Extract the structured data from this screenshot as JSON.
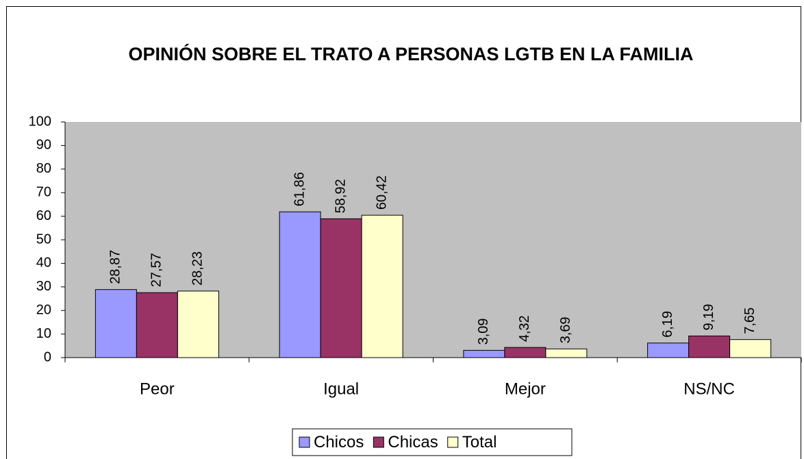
{
  "chart_data": {
    "type": "bar",
    "title": "OPINIÓN SOBRE EL TRATO A PERSONAS LGTB EN LA FAMILIA",
    "categories": [
      "Peor",
      "Igual",
      "Mejor",
      "NS/NC"
    ],
    "series": [
      {
        "name": "Chicos",
        "color": "#9999ff",
        "values": [
          28.87,
          61.86,
          3.09,
          6.19
        ],
        "value_labels": [
          "28,87",
          "61,86",
          "3,09",
          "6,19"
        ]
      },
      {
        "name": "Chicas",
        "color": "#993366",
        "values": [
          27.57,
          58.92,
          4.32,
          9.19
        ],
        "value_labels": [
          "27,57",
          "58,92",
          "4,32",
          "9,19"
        ]
      },
      {
        "name": "Total",
        "color": "#ffffcc",
        "values": [
          28.23,
          60.42,
          3.69,
          7.65
        ],
        "value_labels": [
          "28,23",
          "60,42",
          "3,69",
          "7,65"
        ]
      }
    ],
    "ylim": [
      0,
      100
    ],
    "yticks": [
      0,
      10,
      20,
      30,
      40,
      50,
      60,
      70,
      80,
      90,
      100
    ],
    "grid": false,
    "plot_background": "#c0c0c0",
    "legend": "bottom"
  }
}
